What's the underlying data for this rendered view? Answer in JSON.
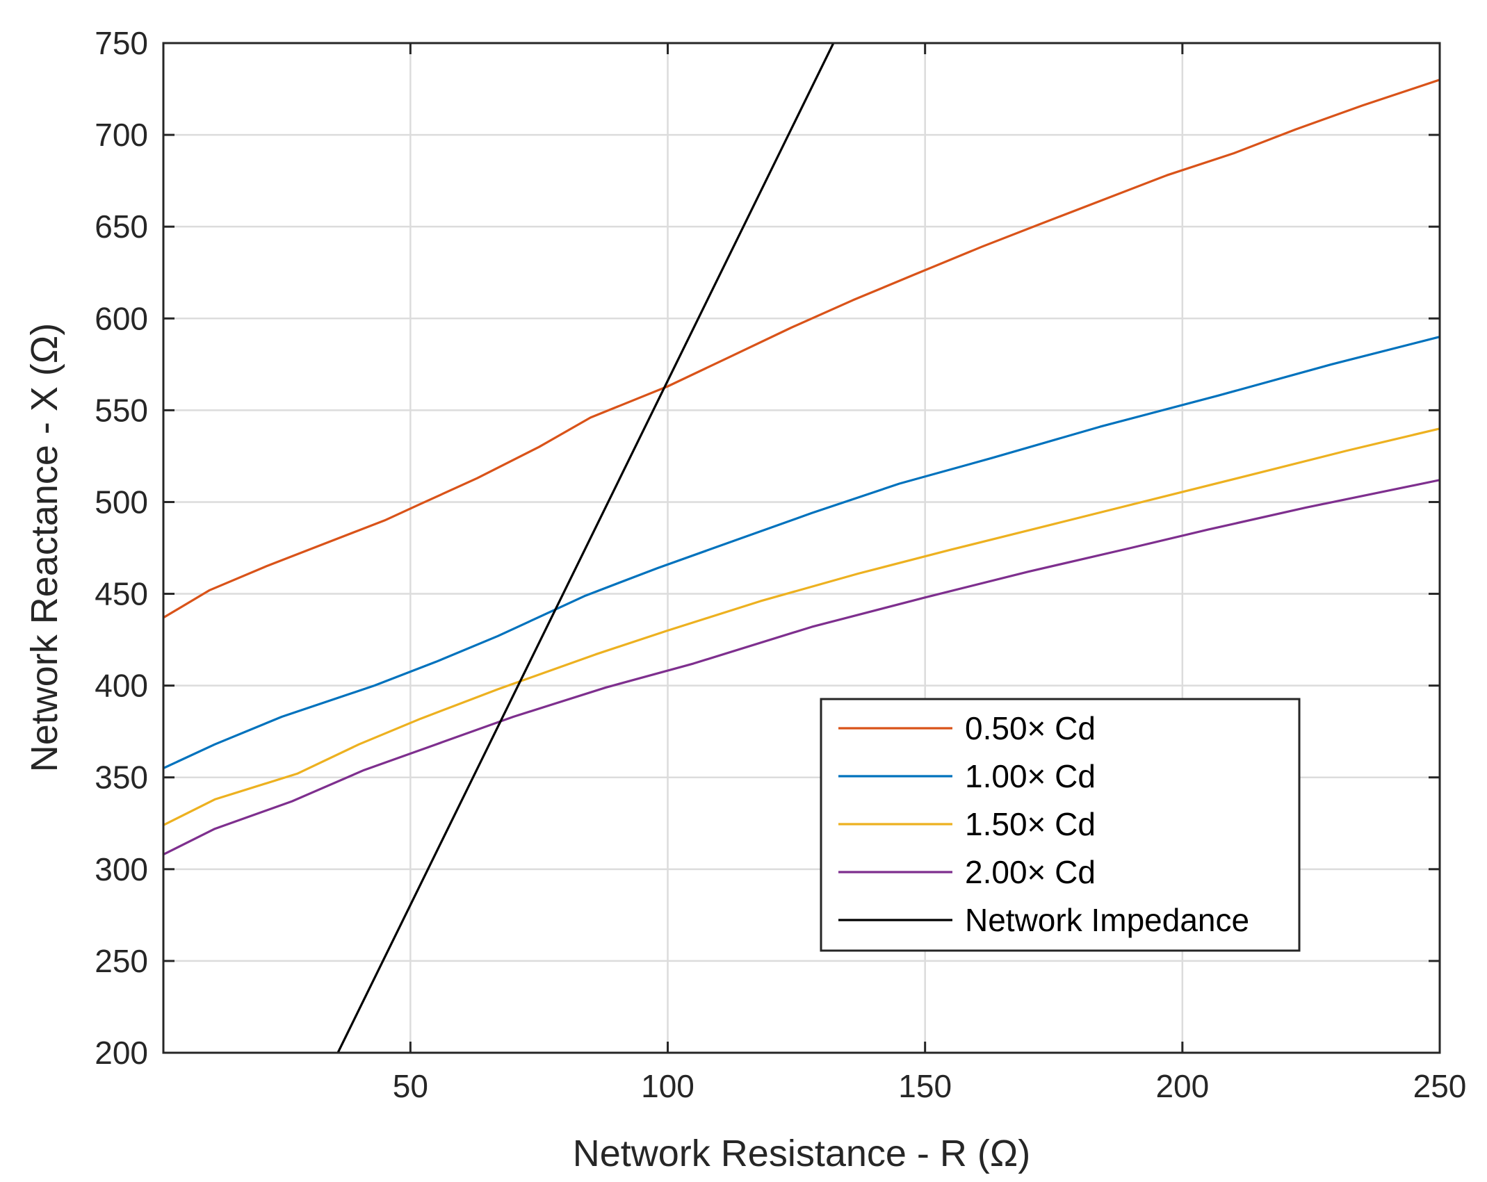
{
  "chart_data": {
    "type": "line",
    "xlabel": "Network Resistance - R (Ω)",
    "ylabel": "Network Reactance - X (Ω)",
    "xlim": [
      2,
      250
    ],
    "ylim": [
      200,
      750
    ],
    "xticks": [
      50,
      100,
      150,
      200,
      250
    ],
    "yticks": [
      200,
      250,
      300,
      350,
      400,
      450,
      500,
      550,
      600,
      650,
      700,
      750
    ],
    "grid": true,
    "legend_position": "lower-right",
    "series": [
      {
        "name": "0.50× Cd",
        "color": "#D95319",
        "x": [
          2,
          11,
          22,
          33,
          45,
          52,
          63,
          75,
          85,
          100,
          112,
          124,
          136,
          148,
          161,
          172,
          184,
          197,
          210,
          222,
          235,
          250
        ],
        "y": [
          437,
          452,
          465,
          477,
          490,
          499,
          513,
          530,
          546,
          563,
          579,
          595,
          610,
          624,
          639,
          651,
          664,
          678,
          690,
          703,
          716,
          730
        ]
      },
      {
        "name": "1.00× Cd",
        "color": "#0072BD",
        "x": [
          2,
          12,
          25,
          43,
          55,
          67,
          84,
          98,
          113,
          128,
          145,
          163,
          184,
          207,
          229,
          250
        ],
        "y": [
          355,
          368,
          383,
          400,
          413,
          427,
          449,
          464,
          479,
          494,
          510,
          524,
          541,
          558,
          575,
          590
        ]
      },
      {
        "name": "1.50× Cd",
        "color": "#EDB120",
        "x": [
          2,
          12,
          28,
          40,
          52,
          67,
          86,
          100,
          118,
          137,
          155,
          175,
          195,
          215,
          232,
          250
        ],
        "y": [
          324,
          338,
          352,
          368,
          382,
          398,
          417,
          430,
          446,
          461,
          474,
          488,
          502,
          516,
          528,
          540
        ]
      },
      {
        "name": "2.00× Cd",
        "color": "#7E2F8E",
        "x": [
          2,
          12,
          27,
          41,
          55,
          70,
          88,
          105,
          128,
          150,
          170,
          190,
          205,
          224,
          250
        ],
        "y": [
          308,
          322,
          337,
          354,
          368,
          383,
          399,
          412,
          432,
          448,
          462,
          475,
          485,
          497,
          512
        ]
      },
      {
        "name": "Network Impedance",
        "color": "#000000",
        "x": [
          35.9,
          132.2
        ],
        "y": [
          200,
          750
        ]
      }
    ]
  }
}
